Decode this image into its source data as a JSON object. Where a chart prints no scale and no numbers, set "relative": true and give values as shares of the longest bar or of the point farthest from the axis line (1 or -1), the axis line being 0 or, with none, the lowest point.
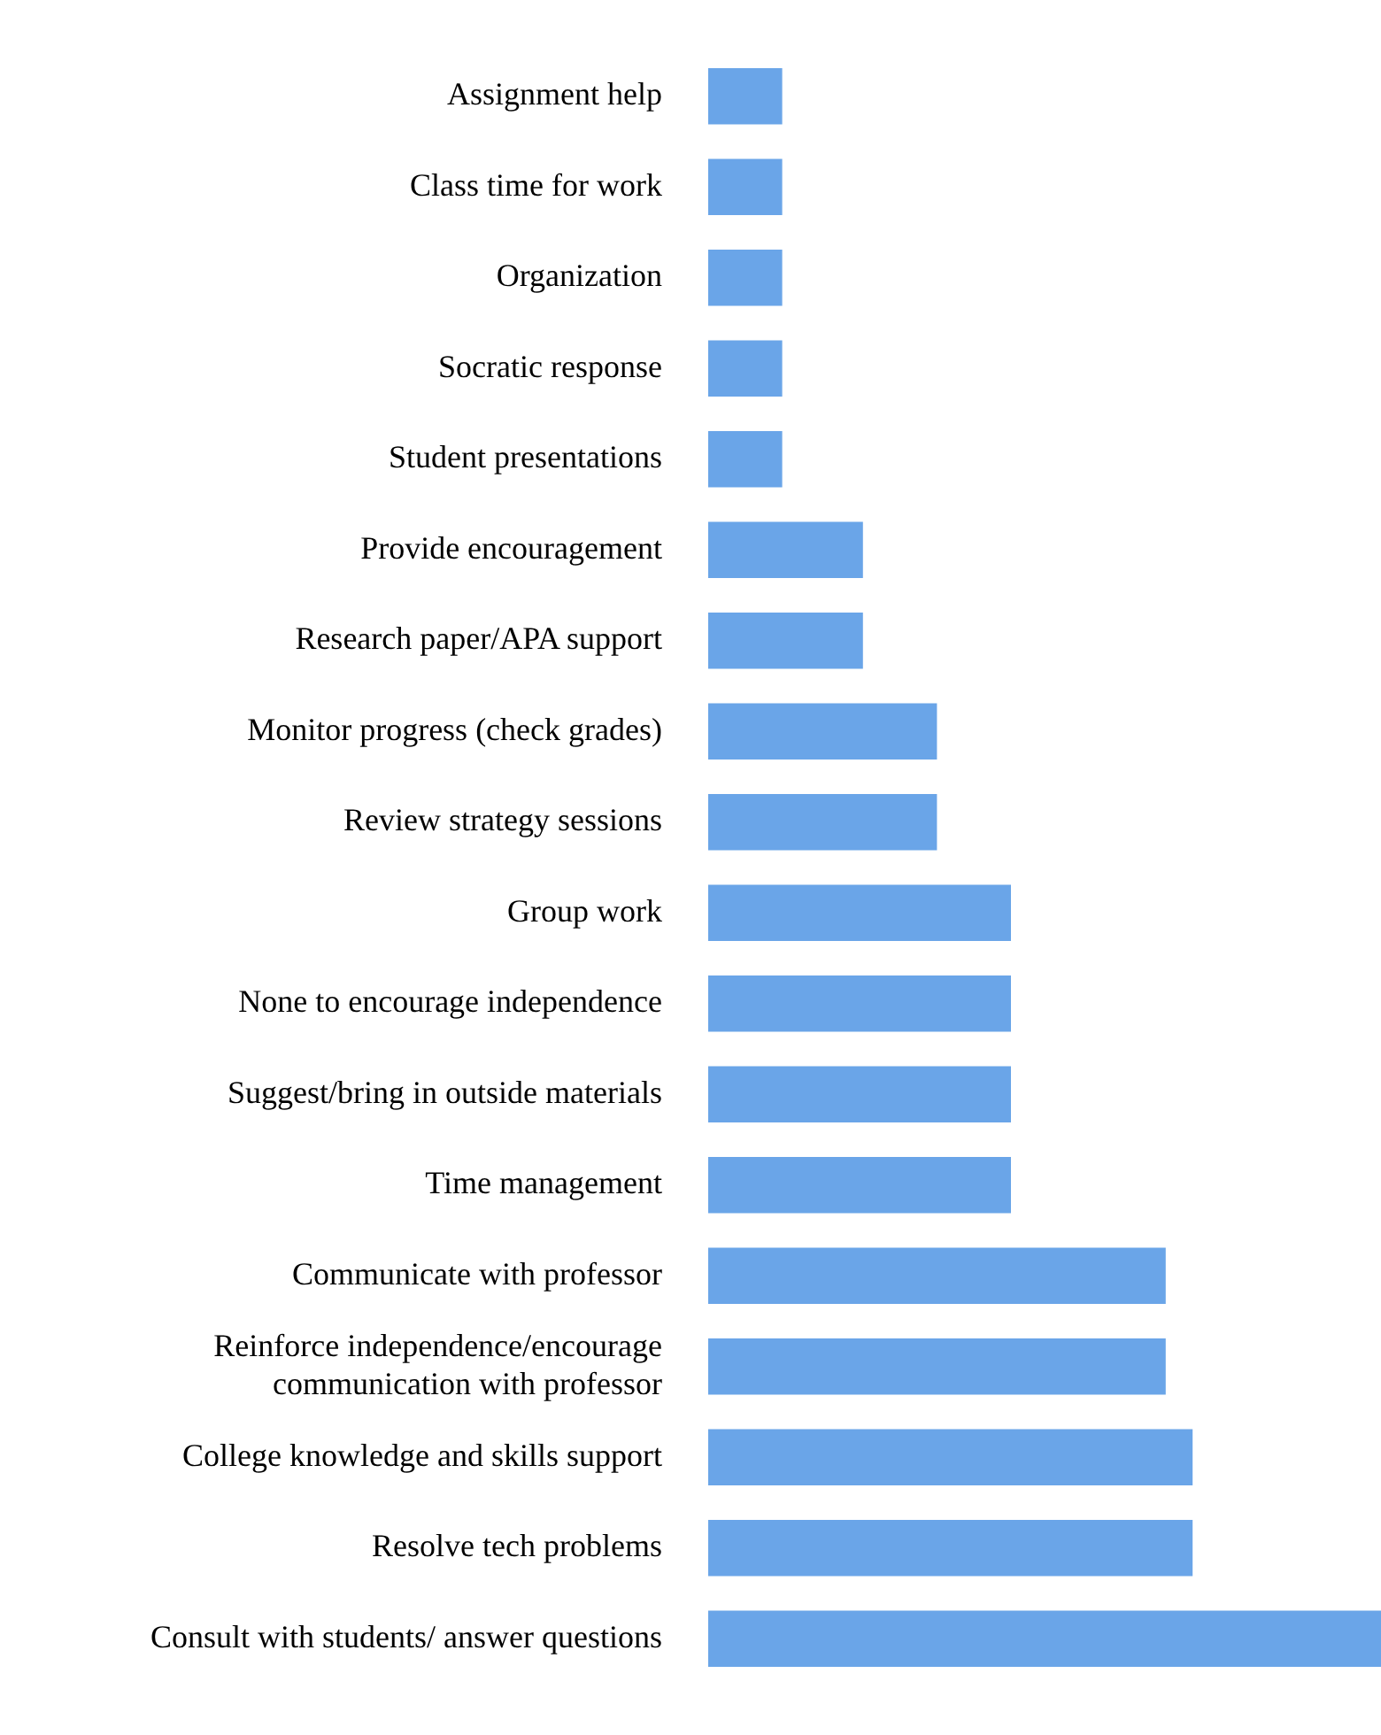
{
  "chart_data": {
    "type": "bar",
    "orientation": "horizontal",
    "relative": true,
    "color": "#6aa5e8",
    "categories": [
      "Assignment help",
      "Class time for work",
      "Organization",
      "Socratic response",
      "Student presentations",
      "Provide encouragement",
      "Research paper/APA support",
      "Monitor progress (check grades)",
      "Review strategy sessions",
      "Group work",
      "None to encourage independence",
      "Suggest/bring in outside materials",
      "Time management",
      "Communicate with professor",
      "Reinforce independence/encourage communication with professor",
      "College knowledge and skills support",
      "Resolve tech problems",
      "Consult with students/ answer questions"
    ],
    "values": [
      0.11,
      0.11,
      0.11,
      0.11,
      0.11,
      0.23,
      0.23,
      0.34,
      0.34,
      0.45,
      0.45,
      0.45,
      0.45,
      0.68,
      0.68,
      0.72,
      0.72,
      1
    ],
    "legend": false
  }
}
